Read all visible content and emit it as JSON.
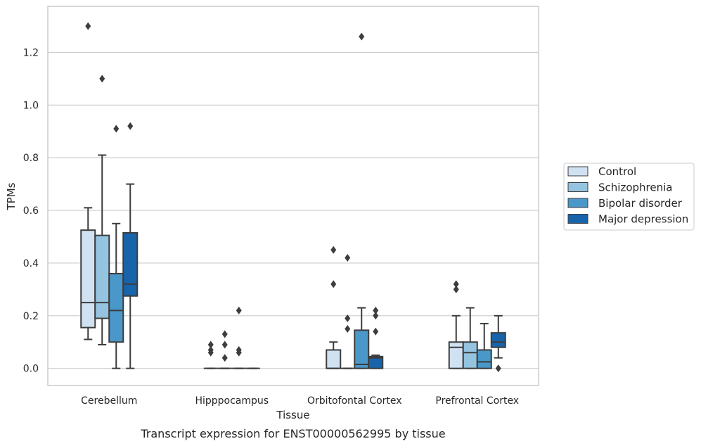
{
  "caption": "Transcript expression for ENST00000562995 by tissue",
  "chart_data": {
    "type": "box",
    "xlabel": "Tissue",
    "ylabel": "TPMs",
    "ylim": [
      -0.065,
      1.375
    ],
    "yticks": [
      0.0,
      0.2,
      0.4,
      0.6,
      0.8,
      1.0,
      1.2
    ],
    "ytick_labels": [
      "0.0",
      "0.2",
      "0.4",
      "0.6",
      "0.8",
      "1.0",
      "1.2"
    ],
    "grid": "horizontal",
    "legend_position": "right",
    "categories": [
      "Cerebellum",
      "Hipppocampus",
      "Orbitofontal Cortex",
      "Prefrontal Cortex"
    ],
    "series": [
      {
        "name": "Control",
        "color": "#d0e1f2",
        "boxes": [
          {
            "q1": 0.155,
            "median": 0.25,
            "q3": 0.525,
            "whisker_low": 0.11,
            "whisker_high": 0.61,
            "outliers": [
              1.3
            ]
          },
          {
            "q1": 0.0,
            "median": 0.0,
            "q3": 0.0,
            "whisker_low": 0.0,
            "whisker_high": 0.0,
            "outliers": [
              0.09,
              0.07,
              0.06
            ]
          },
          {
            "q1": 0.0,
            "median": 0.0,
            "q3": 0.07,
            "whisker_low": 0.0,
            "whisker_high": 0.1,
            "outliers": [
              0.45,
              0.32
            ]
          },
          {
            "q1": 0.0,
            "median": 0.08,
            "q3": 0.1,
            "whisker_low": 0.0,
            "whisker_high": 0.2,
            "outliers": [
              0.32,
              0.3
            ]
          }
        ]
      },
      {
        "name": "Schizophrenia",
        "color": "#94c4df",
        "boxes": [
          {
            "q1": 0.19,
            "median": 0.25,
            "q3": 0.505,
            "whisker_low": 0.09,
            "whisker_high": 0.81,
            "outliers": [
              1.1
            ]
          },
          {
            "q1": 0.0,
            "median": 0.0,
            "q3": 0.0,
            "whisker_low": 0.0,
            "whisker_high": 0.0,
            "outliers": [
              0.13,
              0.09,
              0.04
            ]
          },
          {
            "q1": 0.0,
            "median": 0.0,
            "q3": 0.0,
            "whisker_low": 0.0,
            "whisker_high": 0.0,
            "outliers": [
              0.42,
              0.19,
              0.15
            ]
          },
          {
            "q1": 0.0,
            "median": 0.06,
            "q3": 0.1,
            "whisker_low": 0.0,
            "whisker_high": 0.23,
            "outliers": []
          }
        ]
      },
      {
        "name": "Bipolar disorder",
        "color": "#4a98c9",
        "boxes": [
          {
            "q1": 0.1,
            "median": 0.22,
            "q3": 0.36,
            "whisker_low": 0.0,
            "whisker_high": 0.55,
            "outliers": [
              0.91
            ]
          },
          {
            "q1": 0.0,
            "median": 0.0,
            "q3": 0.0,
            "whisker_low": 0.0,
            "whisker_high": 0.0,
            "outliers": [
              0.22,
              0.07,
              0.06
            ]
          },
          {
            "q1": 0.0,
            "median": 0.015,
            "q3": 0.145,
            "whisker_low": 0.0,
            "whisker_high": 0.23,
            "outliers": [
              1.26
            ]
          },
          {
            "q1": 0.0,
            "median": 0.025,
            "q3": 0.07,
            "whisker_low": 0.0,
            "whisker_high": 0.17,
            "outliers": []
          }
        ]
      },
      {
        "name": "Major depression",
        "color": "#1764ab",
        "boxes": [
          {
            "q1": 0.275,
            "median": 0.32,
            "q3": 0.515,
            "whisker_low": 0.0,
            "whisker_high": 0.7,
            "outliers": [
              0.92
            ]
          },
          {
            "q1": 0.0,
            "median": 0.0,
            "q3": 0.0,
            "whisker_low": 0.0,
            "whisker_high": 0.0,
            "outliers": []
          },
          {
            "q1": 0.0,
            "median": 0.04,
            "q3": 0.045,
            "whisker_low": 0.0,
            "whisker_high": 0.05,
            "outliers": [
              0.22,
              0.2,
              0.14
            ]
          },
          {
            "q1": 0.08,
            "median": 0.1,
            "q3": 0.135,
            "whisker_low": 0.04,
            "whisker_high": 0.2,
            "outliers": [
              0.0
            ]
          }
        ]
      }
    ]
  }
}
